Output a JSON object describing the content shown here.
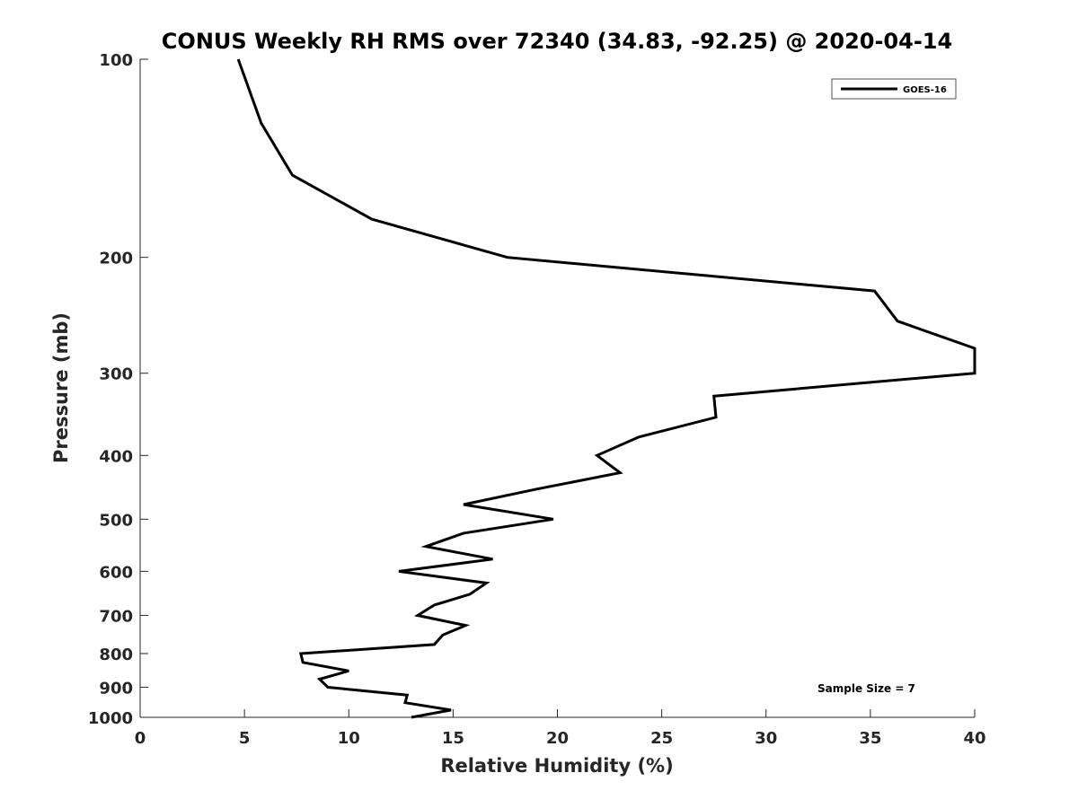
{
  "chart_data": {
    "type": "line",
    "title": "CONUS Weekly RH RMS over 72340 (34.83, -92.25) @ 2020-04-14",
    "xlabel": "Relative Humidity (%)",
    "ylabel": "Pressure (mb)",
    "xlim": [
      0,
      40
    ],
    "ylim": [
      100,
      1000
    ],
    "y_scale": "log",
    "y_reversed": true,
    "grid": false,
    "legend_position": "top-right",
    "x_ticks": [
      0,
      5,
      10,
      15,
      20,
      25,
      30,
      35,
      40
    ],
    "y_ticks": [
      100,
      200,
      300,
      400,
      500,
      600,
      700,
      800,
      900,
      1000
    ],
    "annotation": "Sample Size = 7",
    "series": [
      {
        "name": "GOES-16",
        "color": "#000000",
        "points": [
          [
            4.7,
            100
          ],
          [
            5.8,
            125
          ],
          [
            7.3,
            150
          ],
          [
            11.1,
            175
          ],
          [
            17.6,
            200
          ],
          [
            35.2,
            225
          ],
          [
            36.3,
            250
          ],
          [
            40.0,
            275
          ],
          [
            40.0,
            300
          ],
          [
            27.5,
            325
          ],
          [
            27.6,
            350
          ],
          [
            23.9,
            375
          ],
          [
            21.9,
            400
          ],
          [
            23.0,
            425
          ],
          [
            19.0,
            450
          ],
          [
            15.5,
            475
          ],
          [
            19.8,
            500
          ],
          [
            15.5,
            525
          ],
          [
            13.7,
            550
          ],
          [
            16.9,
            575
          ],
          [
            12.4,
            600
          ],
          [
            16.6,
            625
          ],
          [
            15.8,
            650
          ],
          [
            14.1,
            675
          ],
          [
            13.3,
            700
          ],
          [
            15.6,
            725
          ],
          [
            14.5,
            750
          ],
          [
            14.1,
            775
          ],
          [
            7.7,
            800
          ],
          [
            7.8,
            825
          ],
          [
            10.0,
            850
          ],
          [
            8.6,
            875
          ],
          [
            9.0,
            900
          ],
          [
            12.8,
            925
          ],
          [
            12.7,
            950
          ],
          [
            14.9,
            975
          ],
          [
            13.0,
            1000
          ]
        ]
      }
    ]
  }
}
